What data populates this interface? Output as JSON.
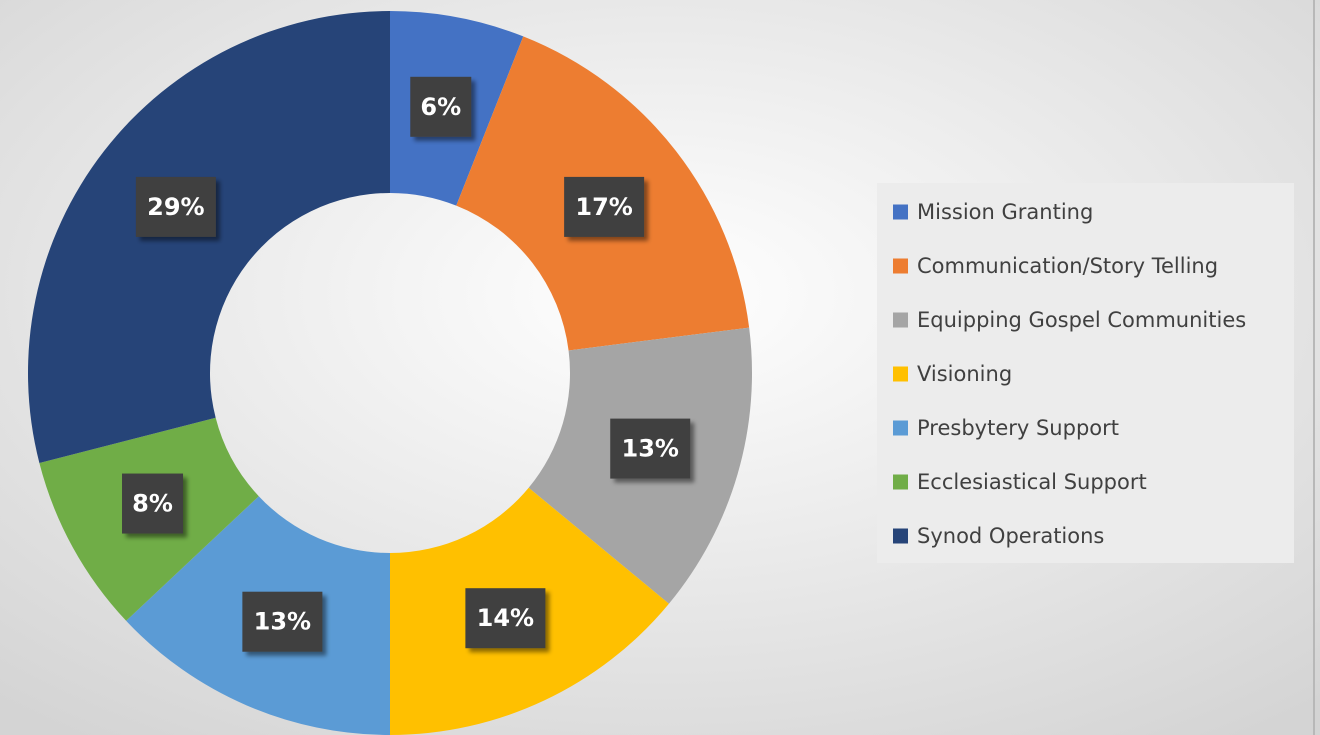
{
  "chart_data": {
    "type": "donut",
    "categories": [
      "Mission Granting",
      "Communication/Story Telling",
      "Equipping Gospel Communities",
      "Visioning",
      "Presbytery Support",
      "Ecclesiastical Support",
      "Synod Operations"
    ],
    "values": [
      6,
      17,
      13,
      14,
      13,
      8,
      29
    ],
    "value_labels": [
      "6%",
      "17%",
      "13%",
      "14%",
      "13%",
      "8%",
      "29%"
    ],
    "colors": [
      "#4472c4",
      "#ed7d31",
      "#a5a5a5",
      "#ffc000",
      "#5b9bd5",
      "#70ad47",
      "#264478"
    ],
    "legend": "right"
  }
}
